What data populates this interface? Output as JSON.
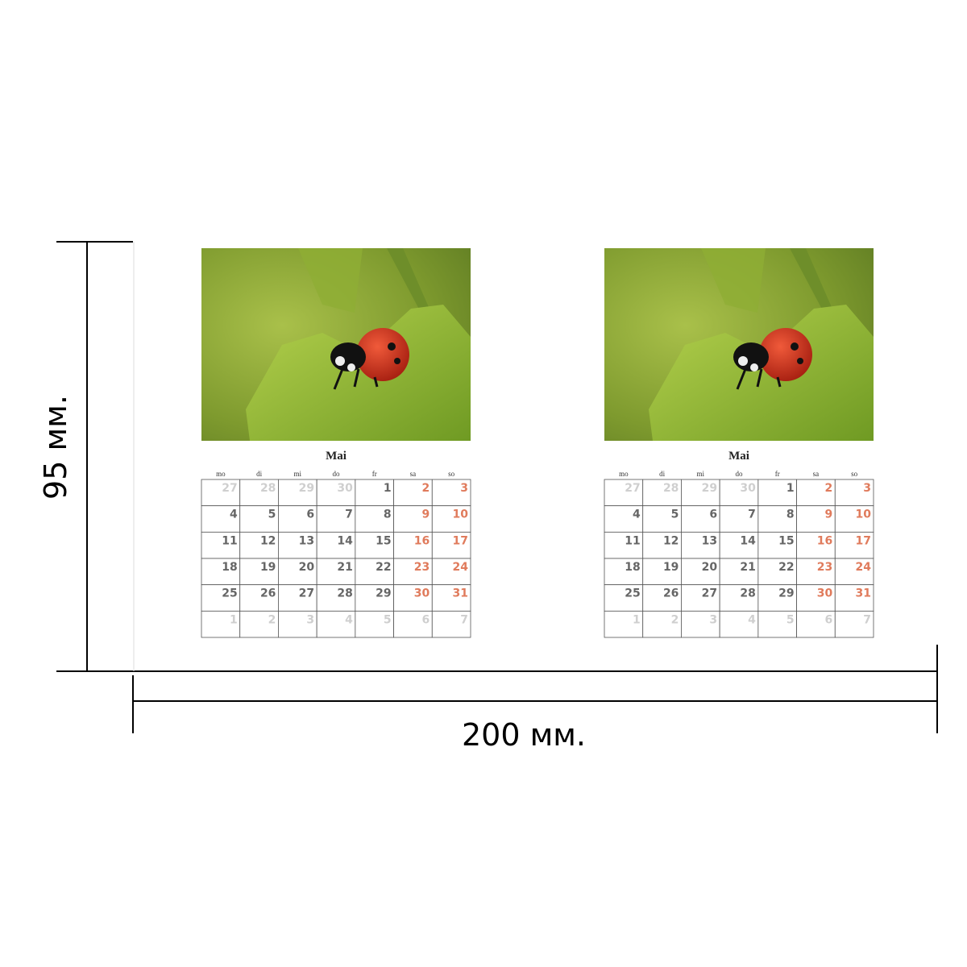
{
  "dimensions": {
    "height": "95 мм.",
    "width": "200 мм."
  },
  "calendars": [
    {
      "month": "Mai",
      "weekdays": [
        "mo",
        "di",
        "mi",
        "do",
        "fr",
        "sa",
        "so"
      ],
      "weeks": [
        [
          27,
          28,
          29,
          30,
          1,
          2,
          3
        ],
        [
          4,
          5,
          6,
          7,
          8,
          9,
          10
        ],
        [
          11,
          12,
          13,
          14,
          15,
          16,
          17
        ],
        [
          18,
          19,
          20,
          21,
          22,
          23,
          24
        ],
        [
          25,
          26,
          27,
          28,
          29,
          30,
          31
        ],
        [
          1,
          2,
          3,
          4,
          5,
          6,
          7
        ]
      ]
    },
    {
      "month": "Mai",
      "weekdays": [
        "mo",
        "di",
        "mi",
        "do",
        "fr",
        "sa",
        "so"
      ],
      "weeks": [
        [
          27,
          28,
          29,
          30,
          1,
          2,
          3
        ],
        [
          4,
          5,
          6,
          7,
          8,
          9,
          10
        ],
        [
          11,
          12,
          13,
          14,
          15,
          16,
          17
        ],
        [
          18,
          19,
          20,
          21,
          22,
          23,
          24
        ],
        [
          25,
          26,
          27,
          28,
          29,
          30,
          31
        ],
        [
          1,
          2,
          3,
          4,
          5,
          6,
          7
        ]
      ]
    }
  ]
}
